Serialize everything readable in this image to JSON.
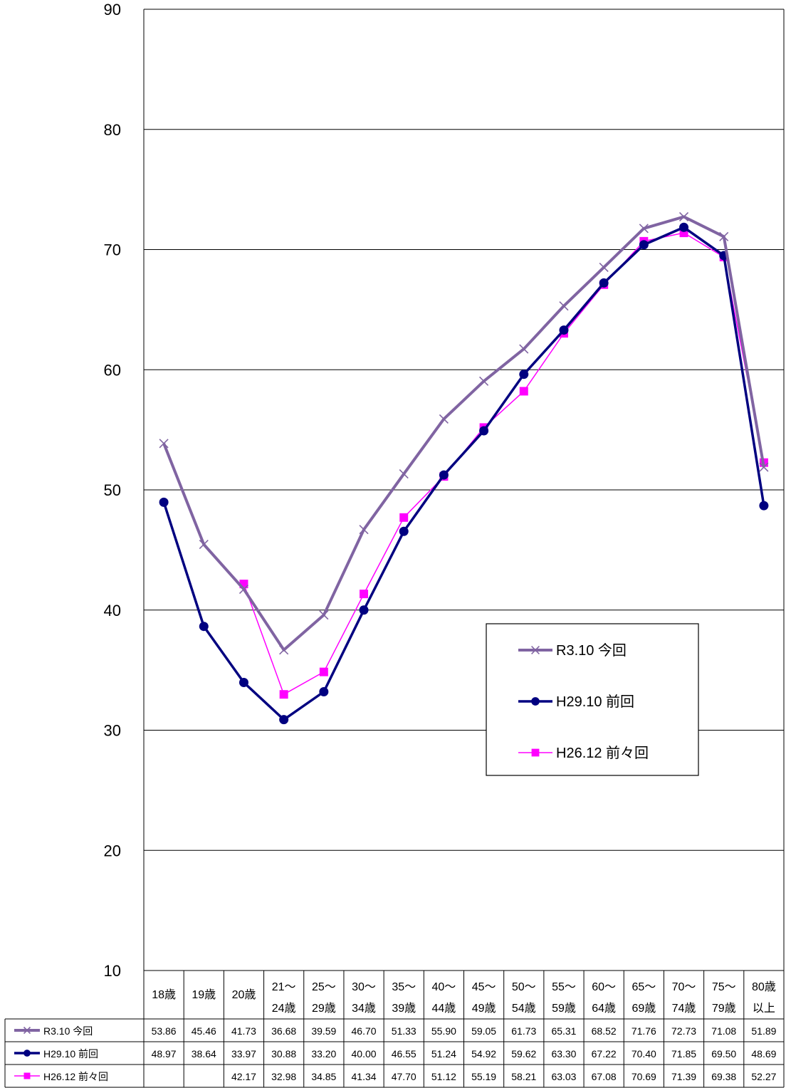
{
  "chart_data": {
    "type": "line",
    "title": "",
    "xlabel": "",
    "ylabel": "",
    "ylim": [
      10,
      90
    ],
    "yticks": [
      10,
      20,
      30,
      40,
      50,
      60,
      70,
      80,
      90
    ],
    "grid": true,
    "legend_position": "inside-lower-right",
    "categories": [
      [
        "18歳"
      ],
      [
        "19歳"
      ],
      [
        "20歳"
      ],
      [
        "21～",
        "24歳"
      ],
      [
        "25～",
        "29歳"
      ],
      [
        "30～",
        "34歳"
      ],
      [
        "35～",
        "39歳"
      ],
      [
        "40～",
        "44歳"
      ],
      [
        "45～",
        "49歳"
      ],
      [
        "50～",
        "54歳"
      ],
      [
        "55～",
        "59歳"
      ],
      [
        "60～",
        "64歳"
      ],
      [
        "65～",
        "69歳"
      ],
      [
        "70～",
        "74歳"
      ],
      [
        "75～",
        "79歳"
      ],
      [
        "80歳",
        "以上"
      ]
    ],
    "series": [
      {
        "name": "R3.10 今回",
        "color": "#8064A2",
        "marker": "x",
        "values": [
          53.86,
          45.46,
          41.73,
          36.68,
          39.59,
          46.7,
          51.33,
          55.9,
          59.05,
          61.73,
          65.31,
          68.52,
          71.76,
          72.73,
          71.08,
          51.89
        ],
        "labels": [
          "53.86",
          "45.46",
          "41.73",
          "36.68",
          "39.59",
          "46.70",
          "51.33",
          "55.90",
          "59.05",
          "61.73",
          "65.31",
          "68.52",
          "71.76",
          "72.73",
          "71.08",
          "51.89"
        ]
      },
      {
        "name": "H29.10 前回",
        "color": "#000080",
        "marker": "circle",
        "values": [
          48.97,
          38.64,
          33.97,
          30.88,
          33.2,
          40.0,
          46.55,
          51.24,
          54.92,
          59.62,
          63.3,
          67.22,
          70.4,
          71.85,
          69.5,
          48.69
        ],
        "labels": [
          "48.97",
          "38.64",
          "33.97",
          "30.88",
          "33.20",
          "40.00",
          "46.55",
          "51.24",
          "54.92",
          "59.62",
          "63.30",
          "67.22",
          "70.40",
          "71.85",
          "69.50",
          "48.69"
        ]
      },
      {
        "name": "H26.12 前々回",
        "color": "#FF00FF",
        "marker": "square",
        "values": [
          null,
          null,
          42.17,
          32.98,
          34.85,
          41.34,
          47.7,
          51.12,
          55.19,
          58.21,
          63.03,
          67.08,
          70.69,
          71.39,
          69.38,
          52.27
        ],
        "labels": [
          "",
          "",
          "42.17",
          "32.98",
          "34.85",
          "41.34",
          "47.70",
          "51.12",
          "55.19",
          "58.21",
          "63.03",
          "67.08",
          "70.69",
          "71.39",
          "69.38",
          "52.27"
        ]
      }
    ]
  }
}
